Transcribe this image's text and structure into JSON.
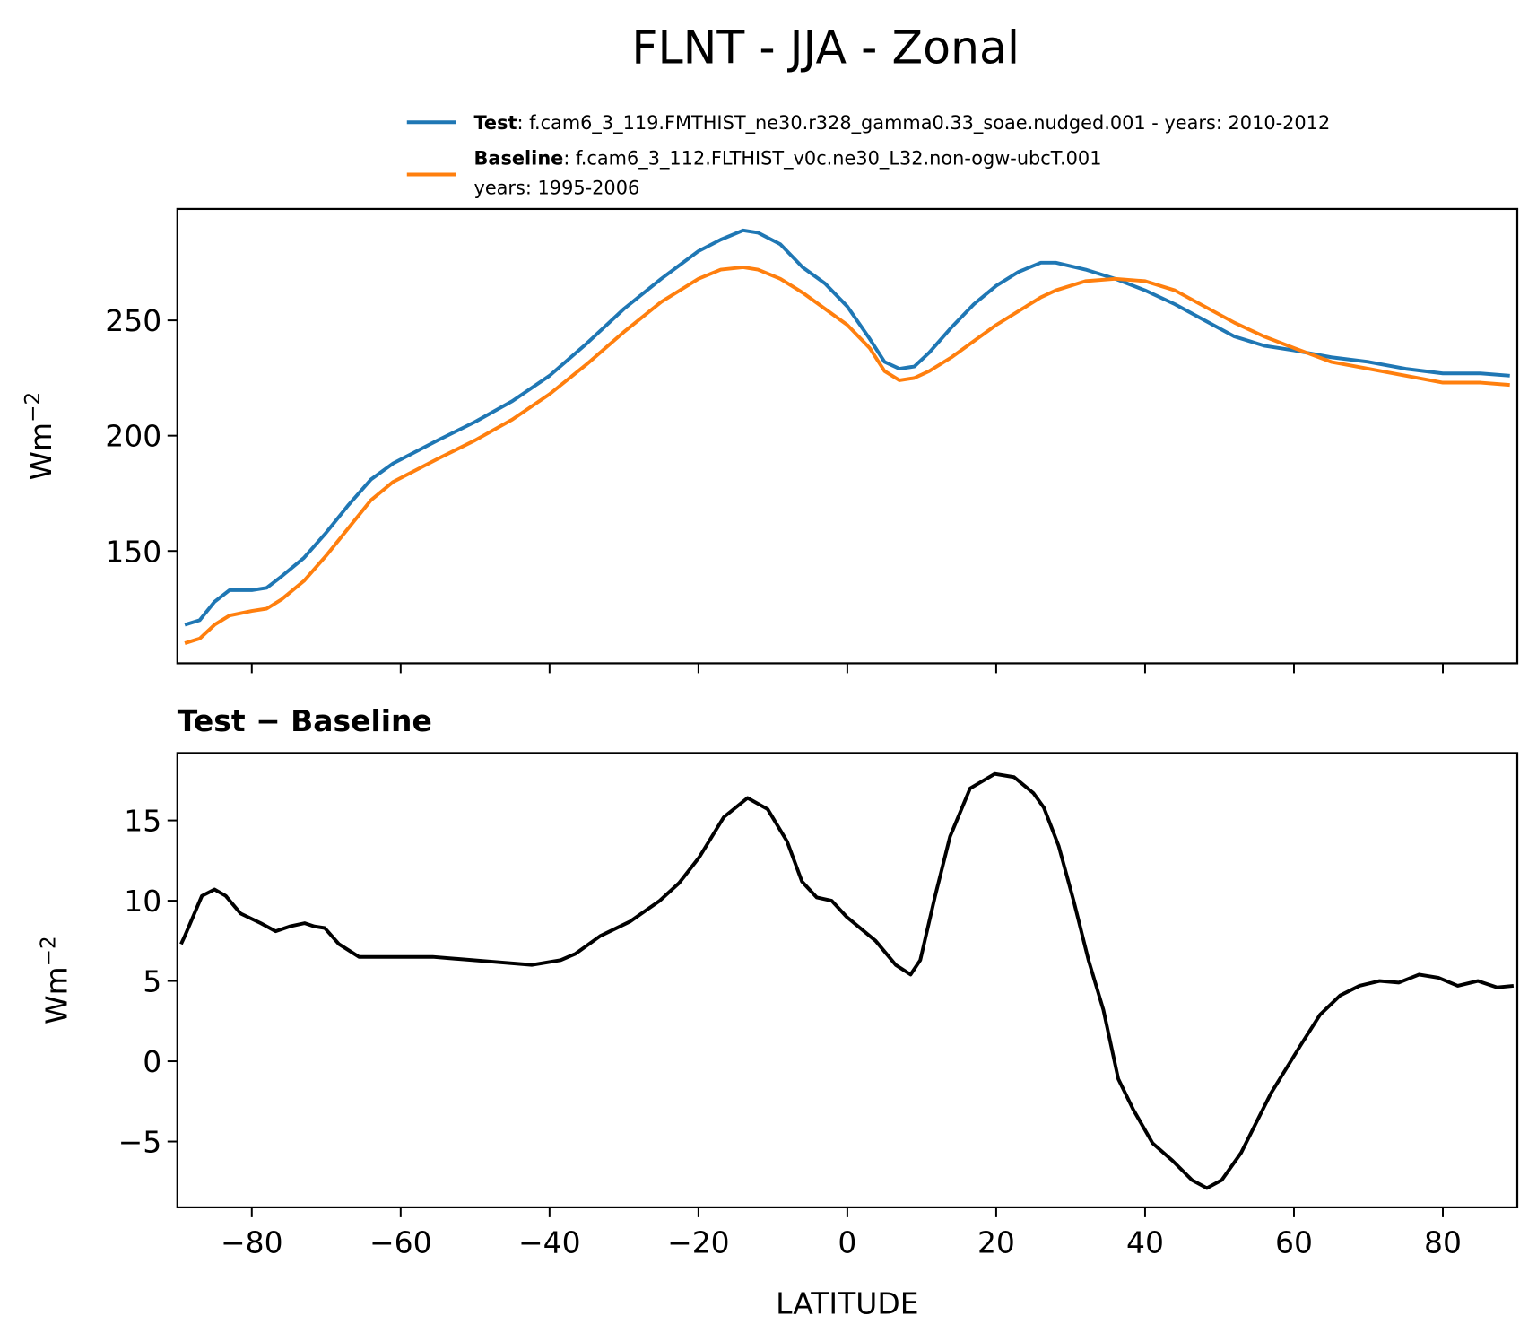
{
  "title": "FLNT - JJA - Zonal",
  "chart_data": [
    {
      "type": "line",
      "ylabel": "Wm",
      "ylabel_sup": "−2",
      "x": [
        -89,
        -87,
        -85,
        -83,
        -80,
        -78,
        -76,
        -73,
        -70,
        -67,
        -64,
        -61,
        -58,
        -55,
        -50,
        -45,
        -40,
        -35,
        -30,
        -25,
        -20,
        -17,
        -14,
        -12,
        -9,
        -6,
        -3,
        0,
        3,
        5,
        7,
        9,
        11,
        14,
        17,
        20,
        23,
        26,
        28,
        32,
        36,
        40,
        44,
        48,
        52,
        56,
        60,
        65,
        70,
        75,
        80,
        85,
        89
      ],
      "series": [
        {
          "name": "Test",
          "description": [
            ": f.cam6_3_119.FMTHIST_ne30.r328_gamma0.33_soae.nudged.001 - years: 2010-2012"
          ],
          "color": "#1f77b4",
          "values": [
            118,
            120,
            128,
            133,
            133,
            134,
            139,
            147,
            158,
            170,
            181,
            188,
            193,
            198,
            206,
            215,
            226,
            240,
            255,
            268,
            280,
            285,
            289,
            288,
            283,
            273,
            266,
            256,
            242,
            232,
            229,
            230,
            236,
            247,
            257,
            265,
            271,
            275,
            275,
            272,
            268,
            263,
            257,
            250,
            243,
            239,
            237,
            234,
            232,
            229,
            227,
            227,
            226
          ]
        },
        {
          "name": "Baseline",
          "description": [
            ": f.cam6_3_112.FLTHIST_v0c.ne30_L32.non-ogw-ubcT.001",
            "years: 1995-2006"
          ],
          "color": "#ff7f0e",
          "values": [
            110,
            112,
            118,
            122,
            124,
            125,
            129,
            137,
            148,
            160,
            172,
            180,
            185,
            190,
            198,
            207,
            218,
            231,
            245,
            258,
            268,
            272,
            273,
            272,
            268,
            262,
            255,
            248,
            238,
            228,
            224,
            225,
            228,
            234,
            241,
            248,
            254,
            260,
            263,
            267,
            268,
            267,
            263,
            256,
            249,
            243,
            238,
            232,
            229,
            226,
            223,
            223,
            222
          ]
        }
      ],
      "xlim": [
        -90,
        90
      ],
      "xticks": [
        -80,
        -60,
        -40,
        -20,
        0,
        20,
        40,
        60,
        80
      ],
      "ylim": [
        101.3,
        298.3
      ],
      "yticks": [
        150,
        200,
        250
      ]
    },
    {
      "type": "line",
      "title": "Test − Baseline",
      "xlabel": "LATITUDE",
      "ylabel": "Wm",
      "ylabel_sup": "−2",
      "x": [
        -89.5,
        -89.0,
        -86.7,
        -85.0,
        -83.5,
        -81.5,
        -78.8,
        -76.8,
        -74.9,
        -72.9,
        -71.6,
        -70.2,
        -68.3,
        -65.6,
        -61.0,
        -55.7,
        -47.7,
        -42.4,
        -38.5,
        -36.5,
        -33.2,
        -29.2,
        -25.2,
        -22.6,
        -19.9,
        -16.6,
        -13.4,
        -10.7,
        -8.1,
        -6.1,
        -4.1,
        -2.1,
        -0.1,
        3.8,
        6.5,
        8.5,
        9.8,
        11.8,
        13.8,
        16.5,
        19.8,
        22.4,
        25.0,
        26.4,
        28.4,
        30.4,
        32.4,
        34.4,
        36.4,
        38.4,
        41.0,
        43.7,
        46.3,
        48.3,
        50.3,
        52.9,
        56.9,
        60.9,
        63.5,
        66.2,
        68.8,
        71.5,
        74.1,
        76.8,
        79.4,
        82.0,
        84.7,
        87.3,
        89.5
      ],
      "series": [
        {
          "name": "Test − Baseline",
          "color": "#000000",
          "values": [
            7.3,
            7.8,
            10.3,
            10.7,
            10.3,
            9.2,
            8.6,
            8.1,
            8.4,
            8.6,
            8.4,
            8.3,
            7.3,
            6.5,
            6.5,
            6.5,
            6.2,
            6.0,
            6.3,
            6.7,
            7.8,
            8.7,
            10.0,
            11.1,
            12.7,
            15.2,
            16.4,
            15.7,
            13.7,
            11.2,
            10.2,
            10.0,
            9.0,
            7.5,
            6.0,
            5.4,
            6.3,
            10.3,
            14.0,
            17.0,
            17.9,
            17.7,
            16.7,
            15.8,
            13.4,
            10.0,
            6.3,
            3.2,
            -1.1,
            -3.0,
            -5.1,
            -6.2,
            -7.4,
            -7.9,
            -7.4,
            -5.7,
            -2.0,
            1.0,
            2.9,
            4.1,
            4.7,
            5.0,
            4.9,
            5.4,
            5.2,
            4.7,
            5.0,
            4.6,
            4.7
          ]
        }
      ],
      "xlim": [
        -90,
        90
      ],
      "xticks": [
        {
          "value": -80,
          "label": "−80"
        },
        {
          "value": -60,
          "label": "−60"
        },
        {
          "value": -40,
          "label": "−40"
        },
        {
          "value": -20,
          "label": "−20"
        },
        0,
        20,
        40,
        60,
        80
      ],
      "ylim": [
        -9.1,
        19.2
      ],
      "yticks": [
        {
          "value": -5,
          "label": "−5"
        },
        0,
        5,
        10,
        15
      ]
    }
  ]
}
